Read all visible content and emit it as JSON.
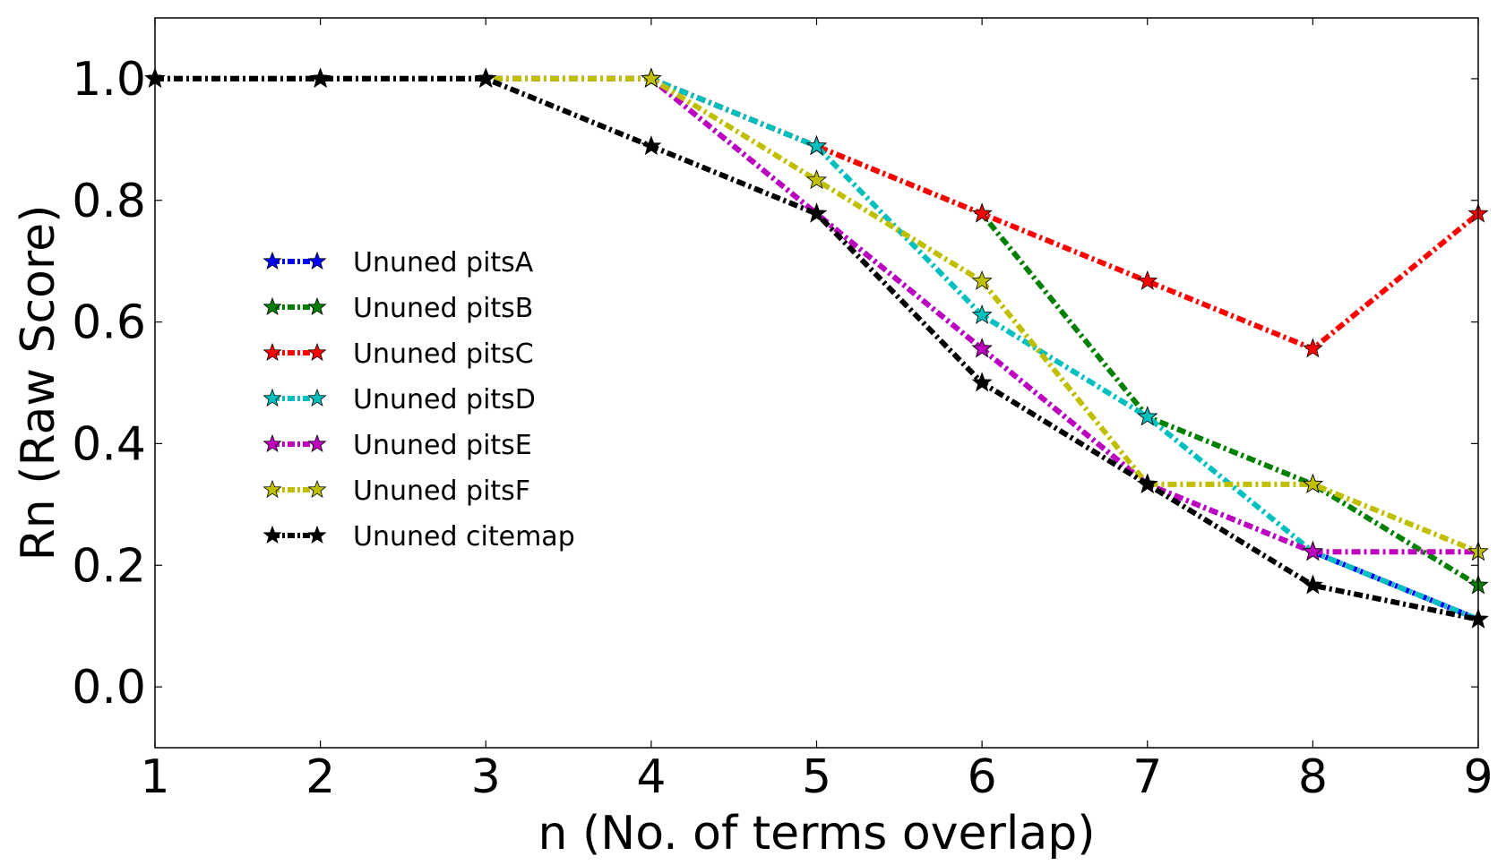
{
  "chart_data": {
    "type": "line",
    "title": "",
    "xlabel": "n (No. of terms overlap)",
    "ylabel": "Rn (Raw Score)",
    "x": [
      1,
      2,
      3,
      4,
      5,
      6,
      7,
      8,
      9
    ],
    "xlim": [
      1,
      9
    ],
    "ylim": [
      -0.1,
      1.1
    ],
    "xticks": [
      "1",
      "2",
      "3",
      "4",
      "5",
      "6",
      "7",
      "8",
      "9"
    ],
    "yticks": [
      "0.0",
      "0.2",
      "0.4",
      "0.6",
      "0.8",
      "1.0"
    ],
    "grid": false,
    "legend_position": "center-left",
    "marker": "star",
    "line_style": "dash-dot",
    "series": [
      {
        "name": "Ununed pitsA",
        "color": "#0000ff",
        "values": [
          1.0,
          1.0,
          1.0,
          1.0,
          0.778,
          0.556,
          0.333,
          0.222,
          0.111
        ]
      },
      {
        "name": "Ununed pitsB",
        "color": "#007f00",
        "values": [
          1.0,
          1.0,
          1.0,
          1.0,
          0.889,
          0.778,
          0.444,
          0.333,
          0.167
        ]
      },
      {
        "name": "Ununed pitsC",
        "color": "#ff0000",
        "values": [
          1.0,
          1.0,
          1.0,
          1.0,
          0.889,
          0.778,
          0.667,
          0.556,
          0.778
        ]
      },
      {
        "name": "Ununed pitsD",
        "color": "#00bfbf",
        "values": [
          1.0,
          1.0,
          1.0,
          1.0,
          0.889,
          0.611,
          0.444,
          0.222,
          0.111
        ]
      },
      {
        "name": "Ununed pitsE",
        "color": "#bf00bf",
        "values": [
          1.0,
          1.0,
          1.0,
          1.0,
          0.778,
          0.556,
          0.333,
          0.222,
          0.222
        ]
      },
      {
        "name": "Ununed pitsF",
        "color": "#bfbf00",
        "values": [
          1.0,
          1.0,
          1.0,
          1.0,
          0.833,
          0.667,
          0.333,
          0.333,
          0.222
        ]
      },
      {
        "name": "Ununed citemap",
        "color": "#000000",
        "values": [
          1.0,
          1.0,
          1.0,
          0.889,
          0.778,
          0.5,
          0.333,
          0.167,
          0.111
        ]
      }
    ]
  }
}
